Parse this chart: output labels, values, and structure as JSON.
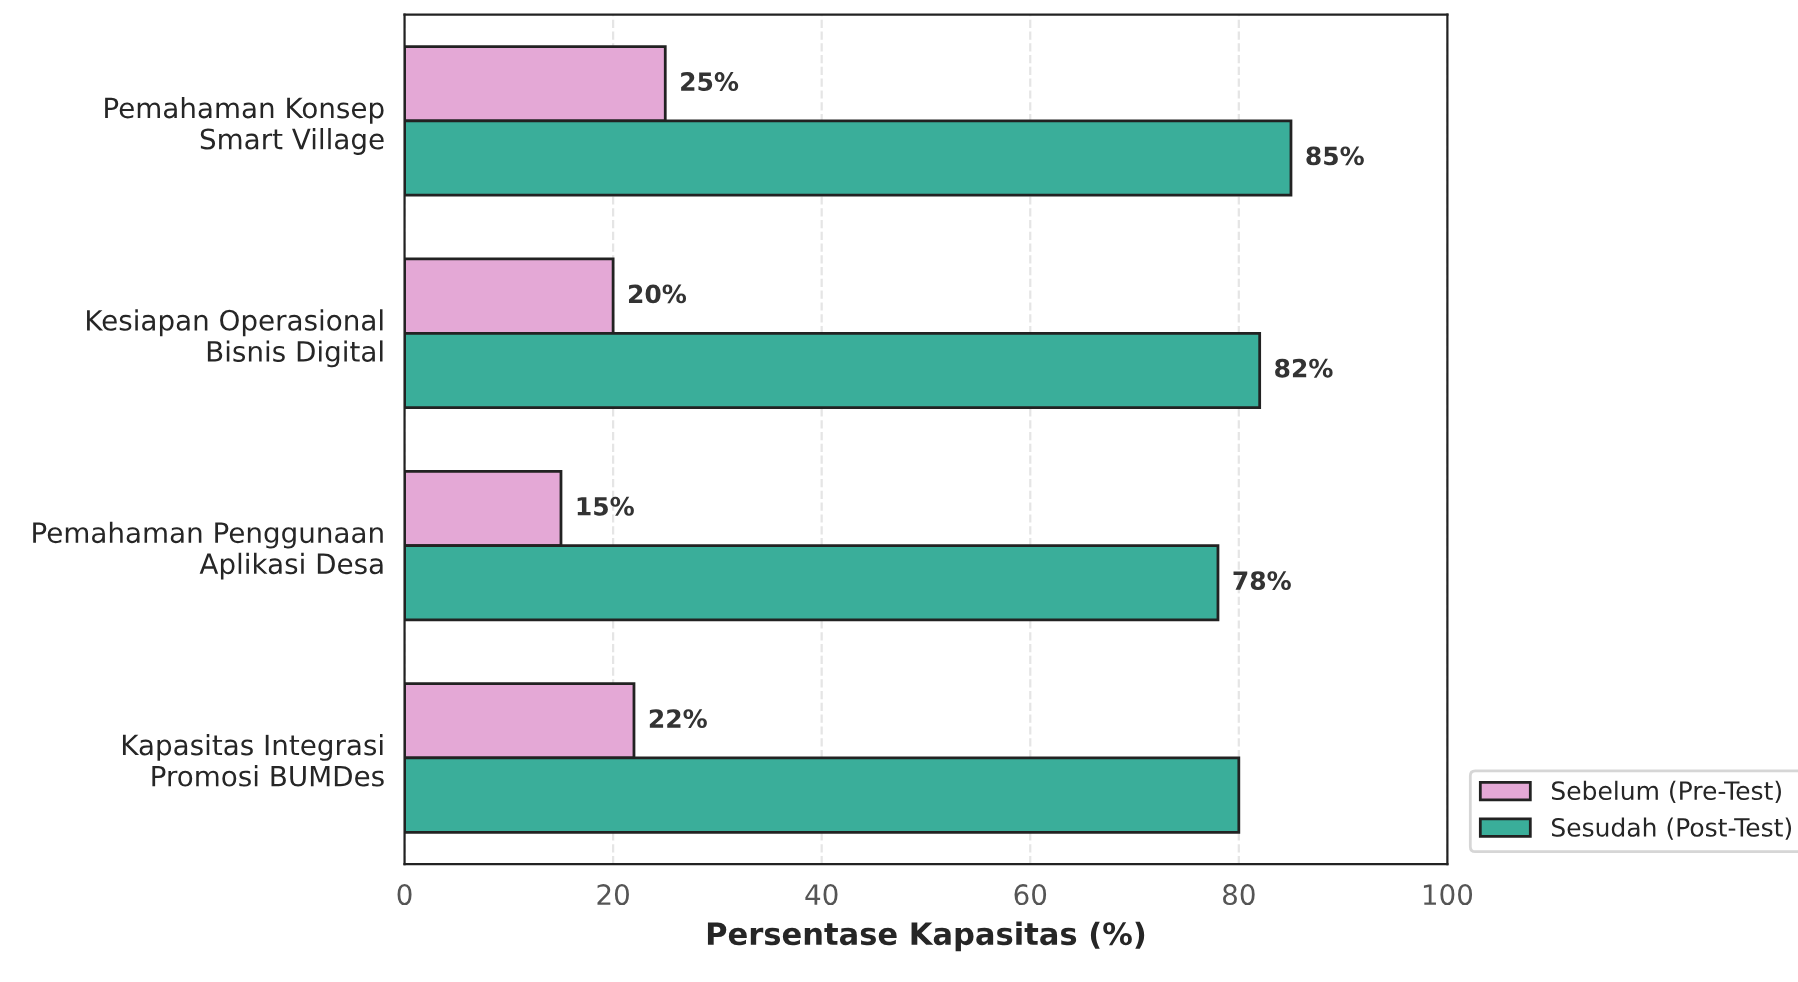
{
  "chart_data": {
    "type": "bar",
    "orientation": "horizontal",
    "xlabel": "Persentase Kapasitas (%)",
    "categories": [
      "Pemahaman Konsep\nSmart Village",
      "Kesiapan Operasional\nBisnis Digital",
      "Pemahaman Penggunaan\nAplikasi Desa",
      "Kapasitas Integrasi\nPromosi BUMDes"
    ],
    "series": [
      {
        "name": "Sebelum (Pre-Test)",
        "color": "#e4a8d6",
        "values": [
          25,
          20,
          15,
          22
        ],
        "value_labels": [
          "25%",
          "20%",
          "15%",
          "22%"
        ]
      },
      {
        "name": "Sesudah (Post-Test)",
        "color": "#3aae9a",
        "values": [
          85,
          82,
          78,
          80
        ],
        "value_labels": [
          "85%",
          "82%",
          "78%",
          null
        ]
      }
    ],
    "xlim": [
      0,
      100
    ],
    "xticks": [
      0,
      20,
      40,
      60,
      80,
      100
    ],
    "grid": "x",
    "legend": "bottom right"
  }
}
